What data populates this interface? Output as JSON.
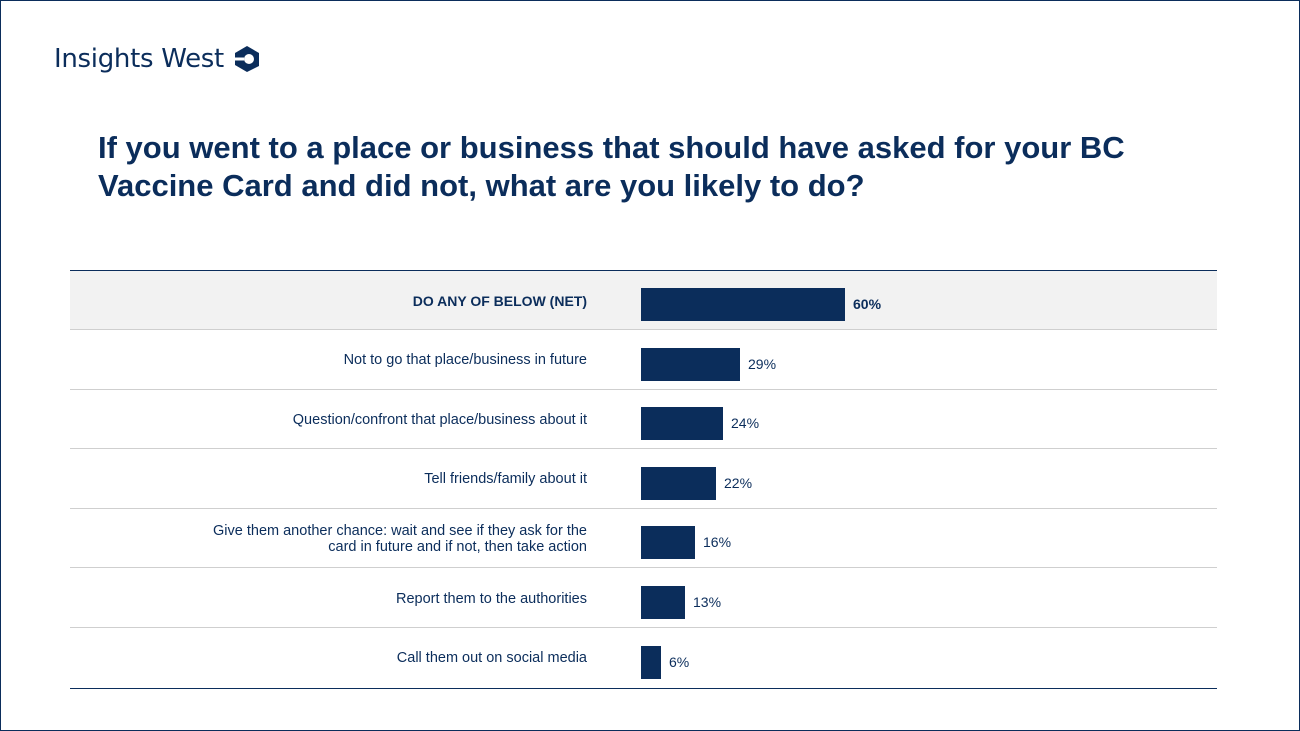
{
  "brand": {
    "name": "Insights West",
    "accent": "#0b2d5b"
  },
  "chart_data": {
    "type": "bar",
    "orientation": "horizontal",
    "title": "If you went to a place or business that should have asked for your BC Vaccine Card and did not, what are you likely to do?",
    "unit": "%",
    "xlim": [
      0,
      100
    ],
    "grid": false,
    "categories": [
      "DO ANY OF BELOW  (NET)",
      "Not to go that place/business in future",
      "Question/confront that place/business about it",
      "Tell friends/family about it",
      "Give them another chance: wait and see if they ask for the card in future and if not, then take action",
      "Report them to the authorities",
      "Call them out on social media"
    ],
    "values": [
      60,
      29,
      24,
      22,
      16,
      13,
      6
    ],
    "value_labels": [
      "60%",
      "29%",
      "24%",
      "22%",
      "16%",
      "13%",
      "6%"
    ],
    "highlight_first_row": true,
    "bar_color": "#0b2d5b"
  }
}
